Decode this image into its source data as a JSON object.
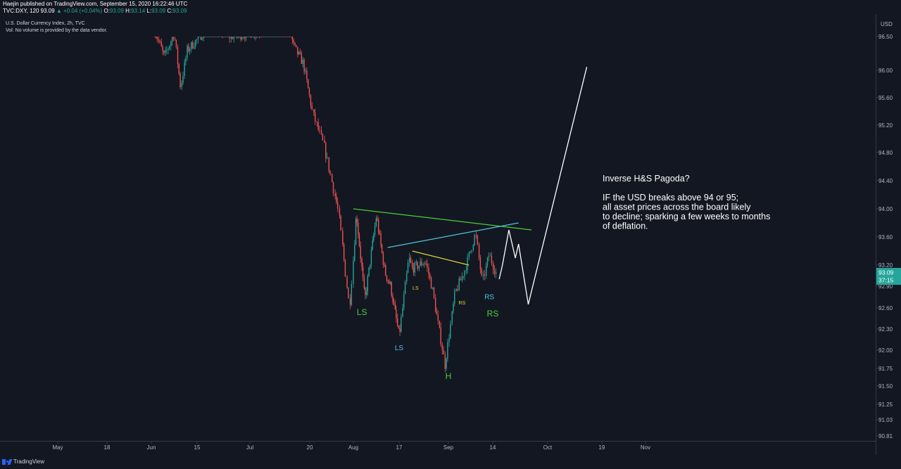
{
  "header": {
    "line1": "Haejin published on TradingView.com, September 15, 2020 16:22:46 UTC",
    "symbol": "TVC:DXY, 120",
    "last": "93.09",
    "change": "▲ +0.04 (+0.04%)",
    "ohlc_prefix": " O:",
    "o": "93.09",
    "h_prefix": " H:",
    "h": "93.14",
    "l_prefix": " L:",
    "l": "93.09",
    "c_prefix": " C:",
    "c": "93.09"
  },
  "legend": {
    "title": "U.S. Dollar Currency Index, 2h, TVC",
    "volume_note": "Vol: No volume is provided by the data vendor."
  },
  "footer": {
    "brand": "TradingView"
  },
  "colors": {
    "background": "#131722",
    "grid": "#1e222d",
    "up": "#26a69a",
    "down": "#ef5350",
    "green_line": "#4ccf38",
    "cyan_line": "#4dc7d9",
    "yellow_line": "#e0d92a",
    "projection": "#ffffff",
    "price_tag": "#26a69a"
  },
  "chart_data": {
    "type": "candlestick",
    "title": "U.S. Dollar Currency Index, 2h, TVC",
    "y_unit": "USD",
    "ylim": [
      90.81,
      96.6
    ],
    "y_ticks": [
      "96.50",
      "96.00",
      "95.60",
      "95.20",
      "94.80",
      "94.40",
      "94.00",
      "93.60",
      "93.20",
      "92.90",
      "92.60",
      "92.30",
      "92.00",
      "91.75",
      "91.50",
      "91.25",
      "91.03",
      "90.81"
    ],
    "x_ticks": [
      "May",
      "18",
      "Jun",
      "15",
      "Jul",
      "20",
      "Aug",
      "17",
      "Sep",
      "14",
      "Oct",
      "19",
      "Nov"
    ],
    "current_price": "93.09",
    "countdown": "37:15",
    "grid": false,
    "price_path": [
      {
        "date": "2020-06-02",
        "value": 96.6
      },
      {
        "date": "2020-06-05",
        "value": 96.2
      },
      {
        "date": "2020-06-08",
        "value": 96.55
      },
      {
        "date": "2020-06-10",
        "value": 95.75
      },
      {
        "date": "2020-06-12",
        "value": 96.3
      },
      {
        "date": "2020-06-15",
        "value": 96.45
      },
      {
        "date": "2020-06-19",
        "value": 96.7
      },
      {
        "date": "2020-06-25",
        "value": 96.5
      },
      {
        "date": "2020-07-07",
        "value": 96.6
      },
      {
        "date": "2020-07-12",
        "value": 96.9
      },
      {
        "date": "2020-07-15",
        "value": 96.35
      },
      {
        "date": "2020-07-18",
        "value": 96.1
      },
      {
        "date": "2020-07-21",
        "value": 95.35
      },
      {
        "date": "2020-07-24",
        "value": 94.9
      },
      {
        "date": "2020-07-28",
        "value": 93.95
      },
      {
        "date": "2020-07-31",
        "value": 92.6
      },
      {
        "date": "2020-08-02",
        "value": 93.95
      },
      {
        "date": "2020-08-05",
        "value": 92.7
      },
      {
        "date": "2020-08-09",
        "value": 93.9
      },
      {
        "date": "2020-08-12",
        "value": 93.1
      },
      {
        "date": "2020-08-14",
        "value": 92.9
      },
      {
        "date": "2020-08-17",
        "value": 92.2
      },
      {
        "date": "2020-08-20",
        "value": 93.3
      },
      {
        "date": "2020-08-21",
        "value": 93.15
      },
      {
        "date": "2020-08-25",
        "value": 93.25
      },
      {
        "date": "2020-08-27",
        "value": 92.9
      },
      {
        "date": "2020-08-29",
        "value": 92.35
      },
      {
        "date": "2020-08-31",
        "value": 91.8
      },
      {
        "date": "2020-09-03",
        "value": 92.8
      },
      {
        "date": "2020-09-06",
        "value": 93.15
      },
      {
        "date": "2020-09-09",
        "value": 93.65
      },
      {
        "date": "2020-09-11",
        "value": 92.95
      },
      {
        "date": "2020-09-13",
        "value": 93.35
      },
      {
        "date": "2020-09-15",
        "value": 93.09
      }
    ],
    "trendlines": [
      {
        "name": "green",
        "points": [
          {
            "date": "2020-08-01",
            "value": 94.0
          },
          {
            "date": "2020-09-26",
            "value": 93.7
          }
        ]
      },
      {
        "name": "cyan",
        "points": [
          {
            "date": "2020-08-13",
            "value": 93.45
          },
          {
            "date": "2020-09-22",
            "value": 93.8
          }
        ]
      },
      {
        "name": "yellow",
        "points": [
          {
            "date": "2020-08-21",
            "value": 93.4
          },
          {
            "date": "2020-09-07",
            "value": 93.2
          }
        ]
      }
    ],
    "projection": [
      {
        "date": "2020-09-16",
        "value": 93.0
      },
      {
        "date": "2020-09-17",
        "value": 93.2
      },
      {
        "date": "2020-09-19",
        "value": 93.7
      },
      {
        "date": "2020-09-21",
        "value": 93.3
      },
      {
        "date": "2020-09-22",
        "value": 93.5
      },
      {
        "date": "2020-09-25",
        "value": 92.65
      },
      {
        "date": "2020-10-14",
        "value": 96.05
      }
    ],
    "annotations": [
      {
        "text": "LS",
        "color": "green",
        "date": "2020-08-04",
        "value": 92.5
      },
      {
        "text": "LS",
        "color": "cyan",
        "date": "2020-08-17",
        "value": 92.0
      },
      {
        "text": "LS",
        "color": "yellow",
        "date": "2020-08-22",
        "value": 92.85
      },
      {
        "text": "H",
        "color": "green",
        "date": "2020-09-01",
        "value": 91.6
      },
      {
        "text": "RS",
        "color": "yellow",
        "date": "2020-09-05",
        "value": 92.65
      },
      {
        "text": "RS",
        "color": "cyan",
        "date": "2020-09-13",
        "value": 92.72
      },
      {
        "text": "RS",
        "color": "green",
        "date": "2020-09-14",
        "value": 92.48
      }
    ],
    "note": {
      "title": "Inverse H&S Pagoda?",
      "lines": [
        "IF the USD breaks above 94 or 95;",
        "all asset prices across the board likely",
        "to decline; sparking a few weeks to months",
        "of deflation."
      ]
    }
  }
}
